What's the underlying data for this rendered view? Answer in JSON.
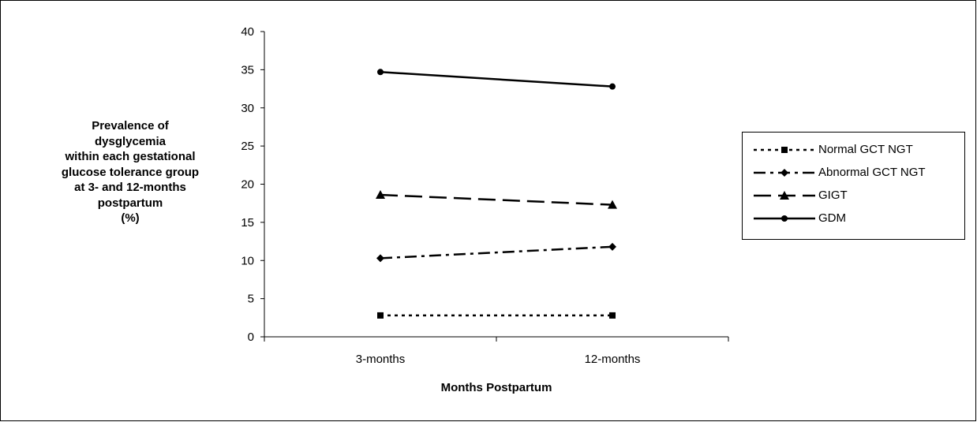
{
  "chart_data": {
    "type": "line",
    "title": "",
    "xlabel": "Months Postpartum",
    "ylabel": "Prevalence of\ndysglycemia\nwithin each gestational\nglucose tolerance group\nat 3- and 12-months\npostpartum\n(%)",
    "categories": [
      "3-months",
      "12-months"
    ],
    "ylim": [
      0,
      40
    ],
    "yticks": [
      "0",
      "5",
      "10",
      "15",
      "20",
      "25",
      "30",
      "35",
      "40"
    ],
    "legend_position": "right",
    "grid": false,
    "series": [
      {
        "name": "Normal GCT NGT",
        "values": [
          2.8,
          2.8
        ],
        "marker": "square",
        "dash": "dotted"
      },
      {
        "name": "Abnormal GCT NGT",
        "values": [
          10.3,
          11.8
        ],
        "marker": "diamond",
        "dash": "dash-dot"
      },
      {
        "name": "GIGT",
        "values": [
          18.6,
          17.3
        ],
        "marker": "triangle",
        "dash": "long-dash"
      },
      {
        "name": "GDM",
        "values": [
          34.7,
          32.8
        ],
        "marker": "circle",
        "dash": "solid"
      }
    ]
  }
}
